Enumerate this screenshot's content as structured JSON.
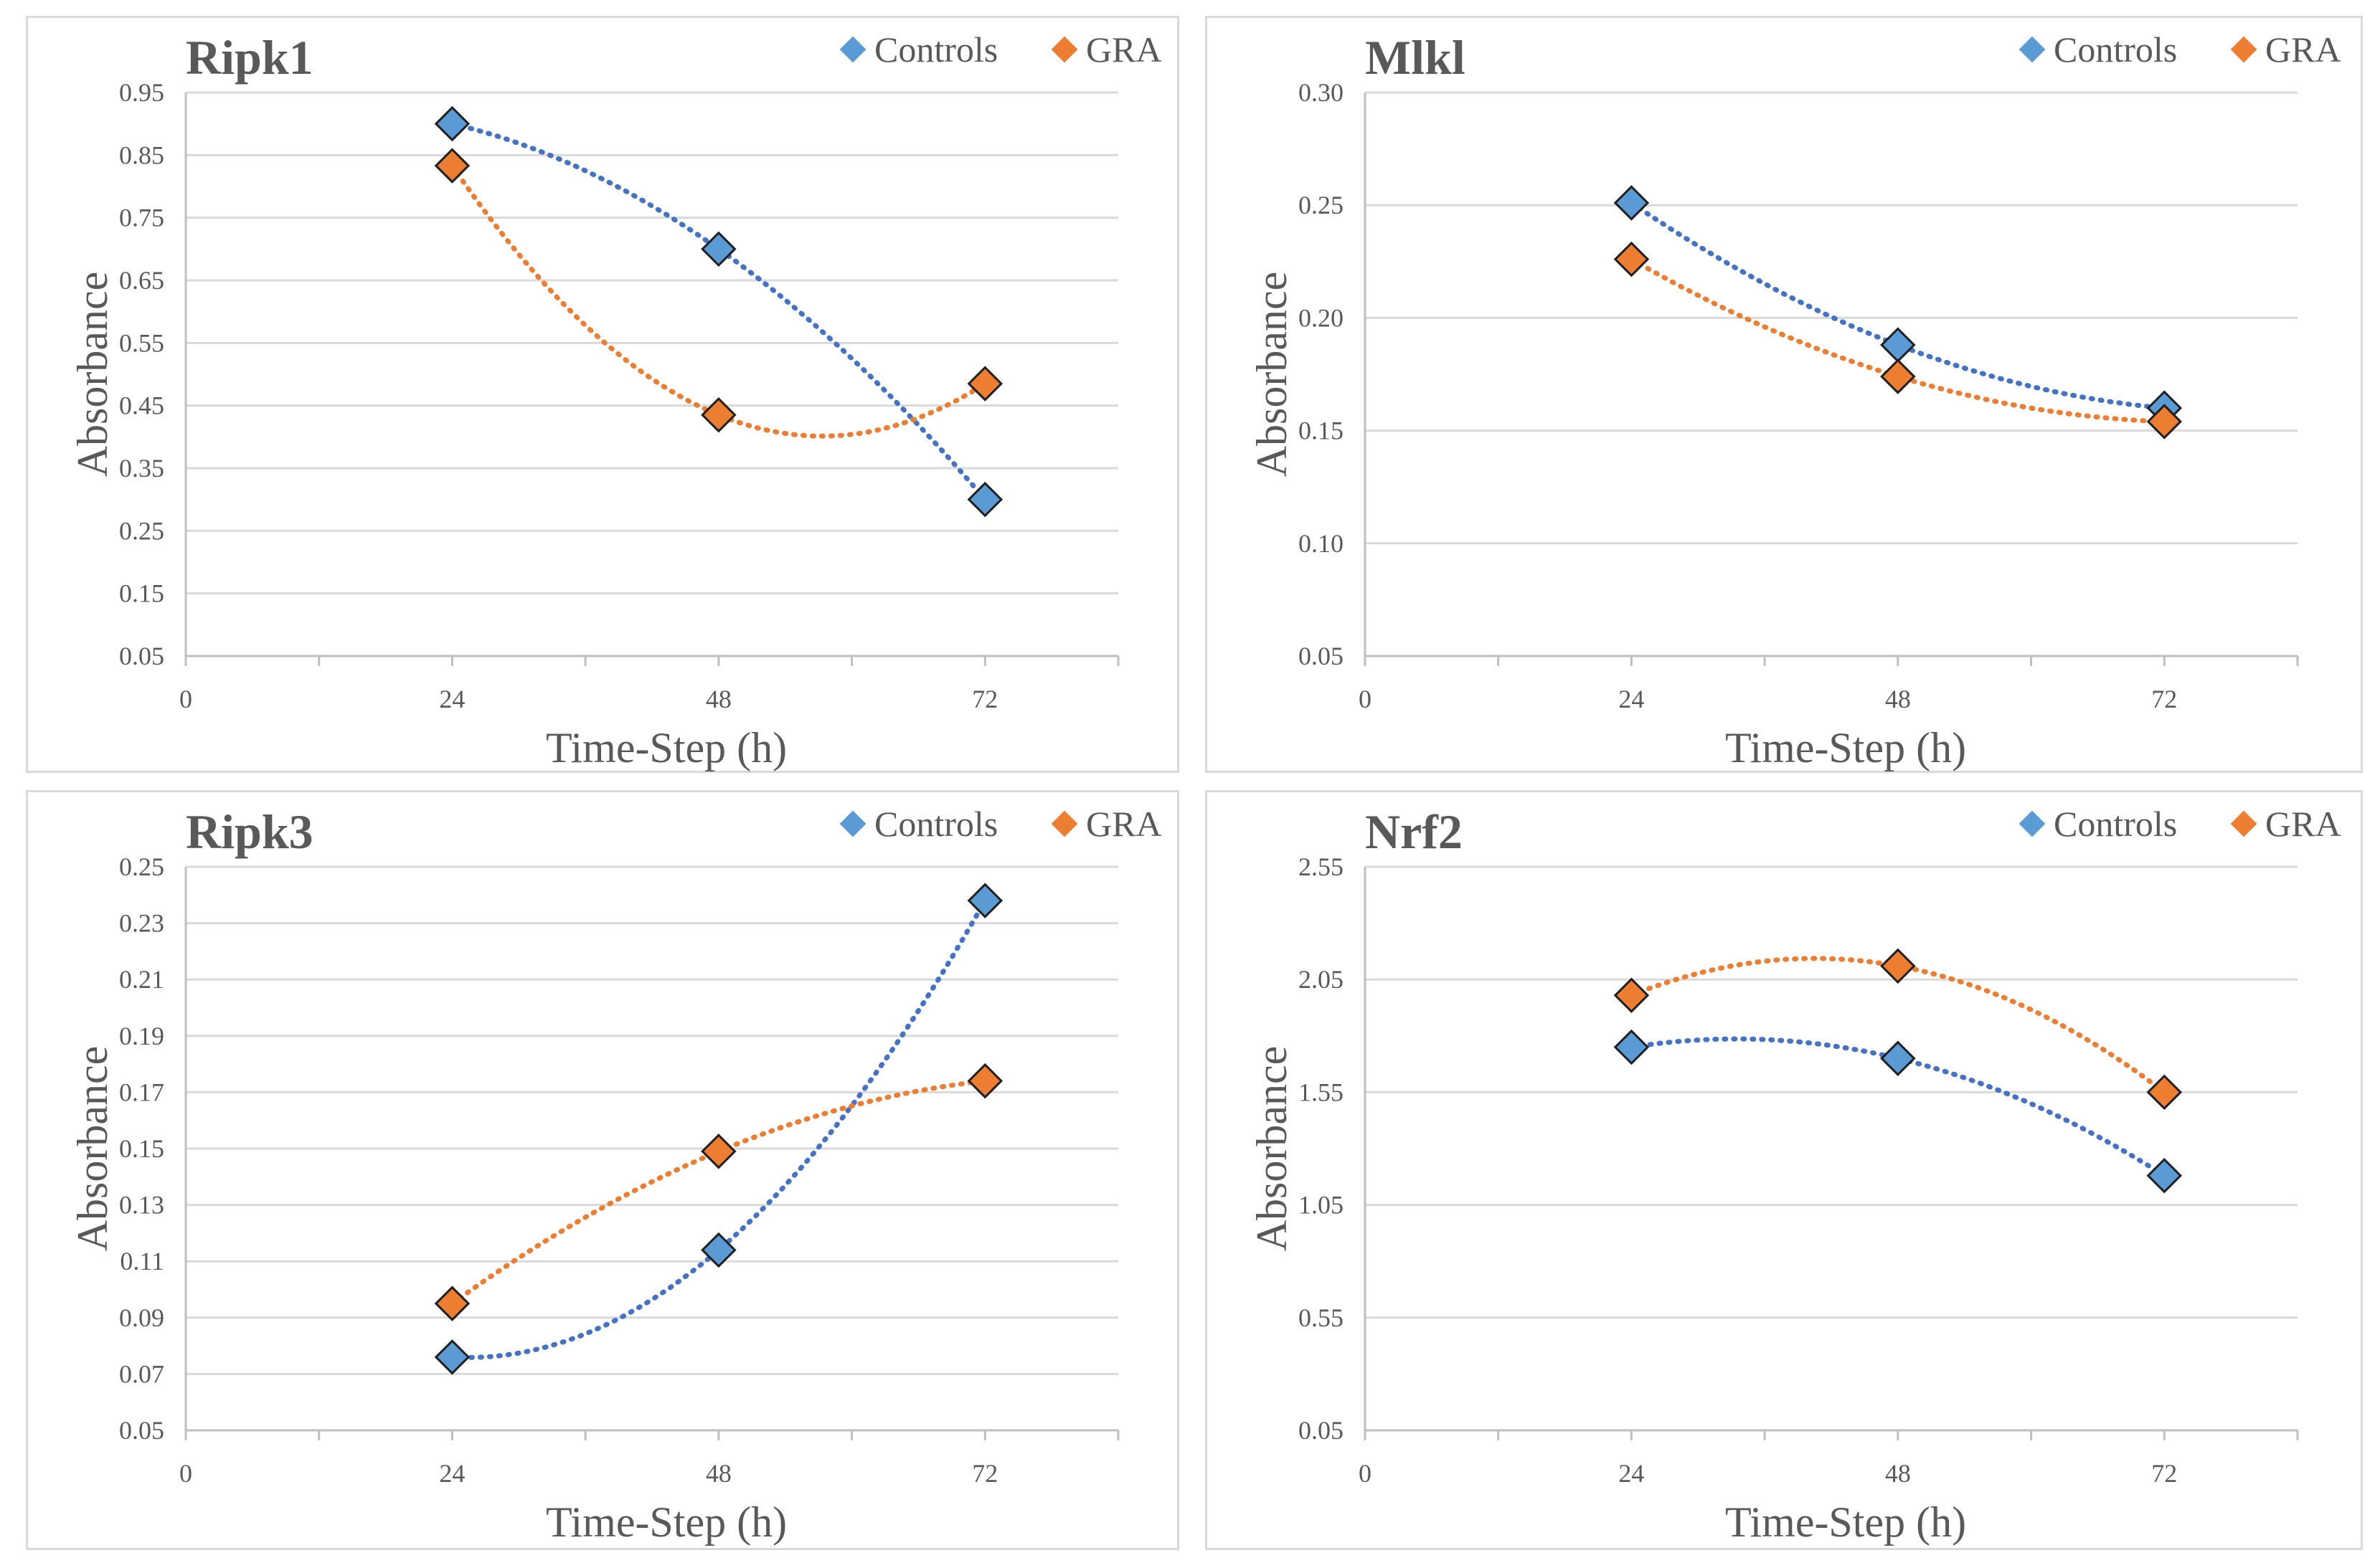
{
  "colors": {
    "controls": "#5b9bd5",
    "gra": "#ed7d31",
    "controls_trend": "#4472c4",
    "gra_trend": "#ed7d31"
  },
  "chart_data": [
    {
      "type": "scatter",
      "title": "Ripk1",
      "xlabel": "Time-Step (h)",
      "ylabel": "Absorbance",
      "xlim": [
        0,
        84
      ],
      "x_ticks": [
        "0",
        "24",
        "48",
        "72"
      ],
      "x_tick_values": [
        0,
        24,
        48,
        72
      ],
      "ylim": [
        0.05,
        0.95
      ],
      "y_ticks": [
        "0.05",
        "0.15",
        "0.25",
        "0.35",
        "0.45",
        "0.55",
        "0.65",
        "0.75",
        "0.85",
        "0.95"
      ],
      "y_tick_values": [
        0.05,
        0.15,
        0.25,
        0.35,
        0.45,
        0.55,
        0.65,
        0.75,
        0.85,
        0.95
      ],
      "legend_position": "top-right",
      "trendline": "polynomial order 2 (dotted)",
      "series": [
        {
          "name": "Controls",
          "x": [
            24,
            48,
            72
          ],
          "values": [
            0.9,
            0.7,
            0.3
          ]
        },
        {
          "name": "GRA",
          "x": [
            24,
            48,
            72
          ],
          "values": [
            0.833,
            0.435,
            0.485
          ]
        }
      ]
    },
    {
      "type": "scatter",
      "title": "Mlkl",
      "xlabel": "Time-Step (h)",
      "ylabel": "Absorbance",
      "xlim": [
        0,
        84
      ],
      "x_ticks": [
        "0",
        "24",
        "48",
        "72"
      ],
      "x_tick_values": [
        0,
        24,
        48,
        72
      ],
      "ylim": [
        0.05,
        0.3
      ],
      "y_ticks": [
        "0.05",
        "0.10",
        "0.15",
        "0.20",
        "0.25",
        "0.30"
      ],
      "y_tick_values": [
        0.05,
        0.1,
        0.15,
        0.2,
        0.25,
        0.3
      ],
      "legend_position": "top-right",
      "trendline": "polynomial order 2 (dotted)",
      "series": [
        {
          "name": "Controls",
          "x": [
            24,
            48,
            72
          ],
          "values": [
            0.251,
            0.188,
            0.16
          ]
        },
        {
          "name": "GRA",
          "x": [
            24,
            48,
            72
          ],
          "values": [
            0.226,
            0.174,
            0.154
          ]
        }
      ]
    },
    {
      "type": "scatter",
      "title": "Ripk3",
      "xlabel": "Time-Step (h)",
      "ylabel": "Absorbance",
      "xlim": [
        0,
        84
      ],
      "x_ticks": [
        "0",
        "24",
        "48",
        "72"
      ],
      "x_tick_values": [
        0,
        24,
        48,
        72
      ],
      "ylim": [
        0.05,
        0.25
      ],
      "y_ticks": [
        "0.05",
        "0.07",
        "0.09",
        "0.11",
        "0.13",
        "0.15",
        "0.17",
        "0.19",
        "0.21",
        "0.23",
        "0.25"
      ],
      "y_tick_values": [
        0.05,
        0.07,
        0.09,
        0.11,
        0.13,
        0.15,
        0.17,
        0.19,
        0.21,
        0.23,
        0.25
      ],
      "legend_position": "top-right",
      "trendline": "polynomial order 2 (dotted)",
      "series": [
        {
          "name": "Controls",
          "x": [
            24,
            48,
            72
          ],
          "values": [
            0.076,
            0.114,
            0.238
          ]
        },
        {
          "name": "GRA",
          "x": [
            24,
            48,
            72
          ],
          "values": [
            0.095,
            0.149,
            0.174
          ]
        }
      ]
    },
    {
      "type": "scatter",
      "title": "Nrf2",
      "xlabel": "Time-Step (h)",
      "ylabel": "Absorbance",
      "xlim": [
        0,
        84
      ],
      "x_ticks": [
        "0",
        "24",
        "48",
        "72"
      ],
      "x_tick_values": [
        0,
        24,
        48,
        72
      ],
      "ylim": [
        0.05,
        2.55
      ],
      "y_ticks": [
        "0.05",
        "0.55",
        "1.05",
        "1.55",
        "2.05",
        "2.55"
      ],
      "y_tick_values": [
        0.05,
        0.55,
        1.05,
        1.55,
        2.05,
        2.55
      ],
      "legend_position": "top-right",
      "trendline": "polynomial order 2 (dotted)",
      "series": [
        {
          "name": "Controls",
          "x": [
            24,
            48,
            72
          ],
          "values": [
            1.75,
            1.7,
            1.18
          ]
        },
        {
          "name": "GRA",
          "x": [
            24,
            48,
            72
          ],
          "values": [
            1.98,
            2.11,
            1.55
          ]
        }
      ]
    }
  ]
}
